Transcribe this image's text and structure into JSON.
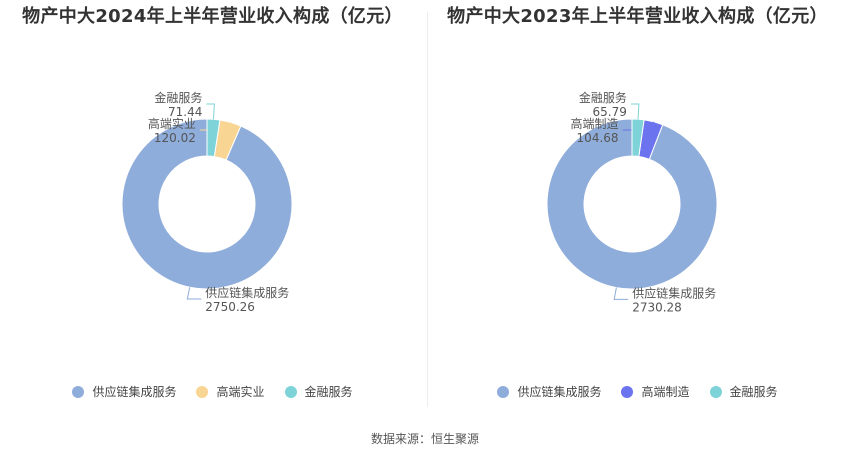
{
  "chart_data": [
    {
      "type": "pie",
      "title": "物产中大2024年上半年营业收入构成（亿元）",
      "categories": [
        "供应链集成服务",
        "高端实业",
        "金融服务"
      ],
      "values": [
        2750.26,
        120.02,
        71.44
      ],
      "value_labels": [
        "2750.26",
        "120.02",
        "71.44"
      ],
      "colors": [
        "#8fadda",
        "#f9d593",
        "#7ed3d8"
      ],
      "legend": "bottom"
    },
    {
      "type": "pie",
      "title": "物产中大2023年上半年营业收入构成（亿元）",
      "categories": [
        "供应链集成服务",
        "高端制造",
        "金融服务"
      ],
      "values": [
        2730.28,
        104.68,
        65.79
      ],
      "value_labels": [
        "2730.28",
        "104.68",
        "65.79"
      ],
      "colors": [
        "#8fadda",
        "#6b73ef",
        "#7ed3d8"
      ],
      "legend": "bottom"
    }
  ],
  "source": "数据来源：恒生聚源"
}
